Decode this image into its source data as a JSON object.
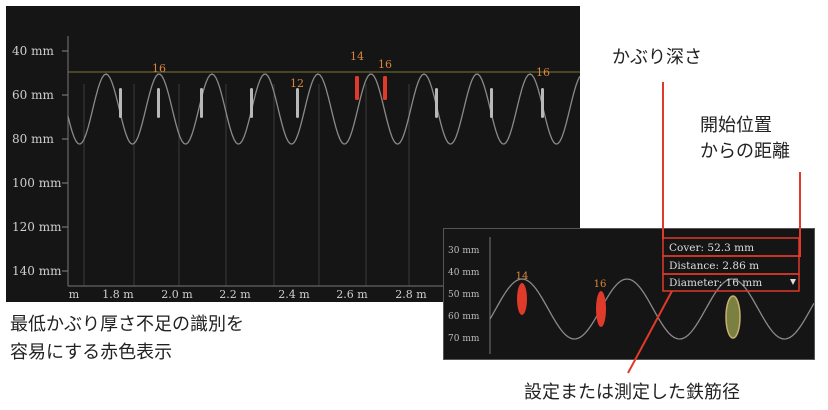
{
  "main_chart": {
    "y_ticks": [
      "40 mm",
      "60 mm",
      "80 mm",
      "100 mm",
      "120 mm",
      "140 mm"
    ],
    "x_ticks": [
      "m",
      "1.8 m",
      "2.0 m",
      "2.2 m",
      "2.4 m",
      "2.6 m",
      "2.8 m"
    ],
    "bar_labels": [
      "16",
      "12",
      "14",
      "16",
      "16"
    ],
    "threshold_mm": 50
  },
  "inset_chart": {
    "y_ticks": [
      "30 mm",
      "40 mm",
      "50 mm",
      "60 mm",
      "70 mm"
    ],
    "labels": [
      "14",
      "16"
    ],
    "info": {
      "cover": "Cover: 52.3 mm",
      "distance": "Distance: 2.86 m",
      "diameter": "Diameter: 16 mm"
    }
  },
  "annotations": {
    "cover_depth": "かぶり深さ",
    "distance_from_start_line1": "開始位置",
    "distance_from_start_line2": "からの距離",
    "red_display_line1": "最低かぶり厚さ不足の識別を",
    "red_display_line2": "容易にする赤色表示",
    "rebar_diameter": "設定または測定した鉄筋径"
  },
  "colors": {
    "red": "#e03a2a",
    "gray": "#a0a0a0",
    "orange": "#d9853b",
    "threshold": "#7a7530"
  }
}
